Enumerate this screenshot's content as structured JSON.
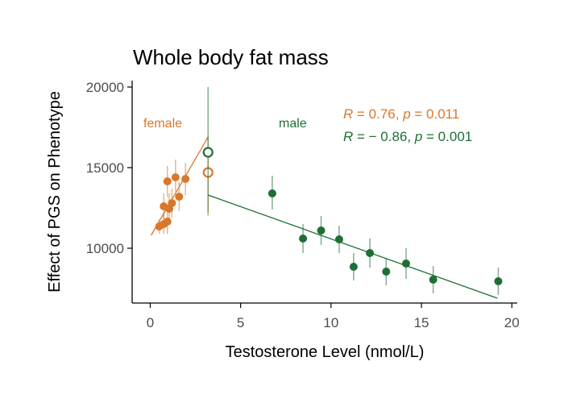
{
  "chart_data": {
    "type": "scatter",
    "title": "Whole body fat mass",
    "xlabel": "Testosterone Level (nmol/L)",
    "ylabel": "Effect of PGS on Phenotype",
    "xlim": [
      -1,
      20.3
    ],
    "ylim": [
      6600,
      20400
    ],
    "xticks": [
      0,
      5,
      10,
      15,
      20
    ],
    "yticks": [
      10000,
      15000,
      20000
    ],
    "grid": false,
    "colors": {
      "female": "#d9772b",
      "male": "#1f6f35"
    },
    "group_labels": {
      "female": "female",
      "male": "male"
    },
    "stats": [
      {
        "group": "female",
        "R": "0.76",
        "p": "0.011"
      },
      {
        "group": "male",
        "R": "− 0.86",
        "p": "0.001"
      }
    ],
    "series": [
      {
        "name": "female",
        "points": [
          {
            "x": 0.5,
            "y": 11350,
            "lo": 10900,
            "hi": 11800
          },
          {
            "x": 0.75,
            "y": 11500,
            "lo": 10900,
            "hi": 12100
          },
          {
            "x": 0.95,
            "y": 11650,
            "lo": 10900,
            "hi": 12500
          },
          {
            "x": 0.75,
            "y": 12600,
            "lo": 11800,
            "hi": 13400
          },
          {
            "x": 1.05,
            "y": 12450,
            "lo": 11500,
            "hi": 13400
          },
          {
            "x": 1.2,
            "y": 12800,
            "lo": 11900,
            "hi": 13700
          },
          {
            "x": 1.6,
            "y": 13200,
            "lo": 12300,
            "hi": 14100
          },
          {
            "x": 0.95,
            "y": 14150,
            "lo": 13200,
            "hi": 15100
          },
          {
            "x": 1.4,
            "y": 14400,
            "lo": 13500,
            "hi": 15500
          },
          {
            "x": 1.95,
            "y": 14300,
            "lo": 13300,
            "hi": 15300
          }
        ],
        "outlier": {
          "x": 3.2,
          "y": 14700,
          "lo": 12000,
          "hi": 16900
        },
        "fit": [
          [
            0.05,
            10800
          ],
          [
            3.2,
            16900
          ]
        ]
      },
      {
        "name": "male",
        "points": [
          {
            "x": 6.75,
            "y": 13400,
            "lo": 12400,
            "hi": 14500
          },
          {
            "x": 8.45,
            "y": 10600,
            "lo": 9700,
            "hi": 11500
          },
          {
            "x": 9.45,
            "y": 11100,
            "lo": 10200,
            "hi": 12000
          },
          {
            "x": 10.45,
            "y": 10550,
            "lo": 9700,
            "hi": 11400
          },
          {
            "x": 11.25,
            "y": 8850,
            "lo": 8000,
            "hi": 9700
          },
          {
            "x": 12.15,
            "y": 9700,
            "lo": 8800,
            "hi": 10600
          },
          {
            "x": 13.05,
            "y": 8550,
            "lo": 7700,
            "hi": 9400
          },
          {
            "x": 14.15,
            "y": 9050,
            "lo": 8100,
            "hi": 10000
          },
          {
            "x": 15.65,
            "y": 8050,
            "lo": 7200,
            "hi": 8900
          },
          {
            "x": 19.25,
            "y": 7950,
            "lo": 7100,
            "hi": 8800
          }
        ],
        "outlier": {
          "x": 3.2,
          "y": 15950,
          "lo": 12200,
          "hi": 20000
        },
        "fit": [
          [
            3.2,
            13300
          ],
          [
            19.2,
            6900
          ]
        ]
      }
    ]
  }
}
